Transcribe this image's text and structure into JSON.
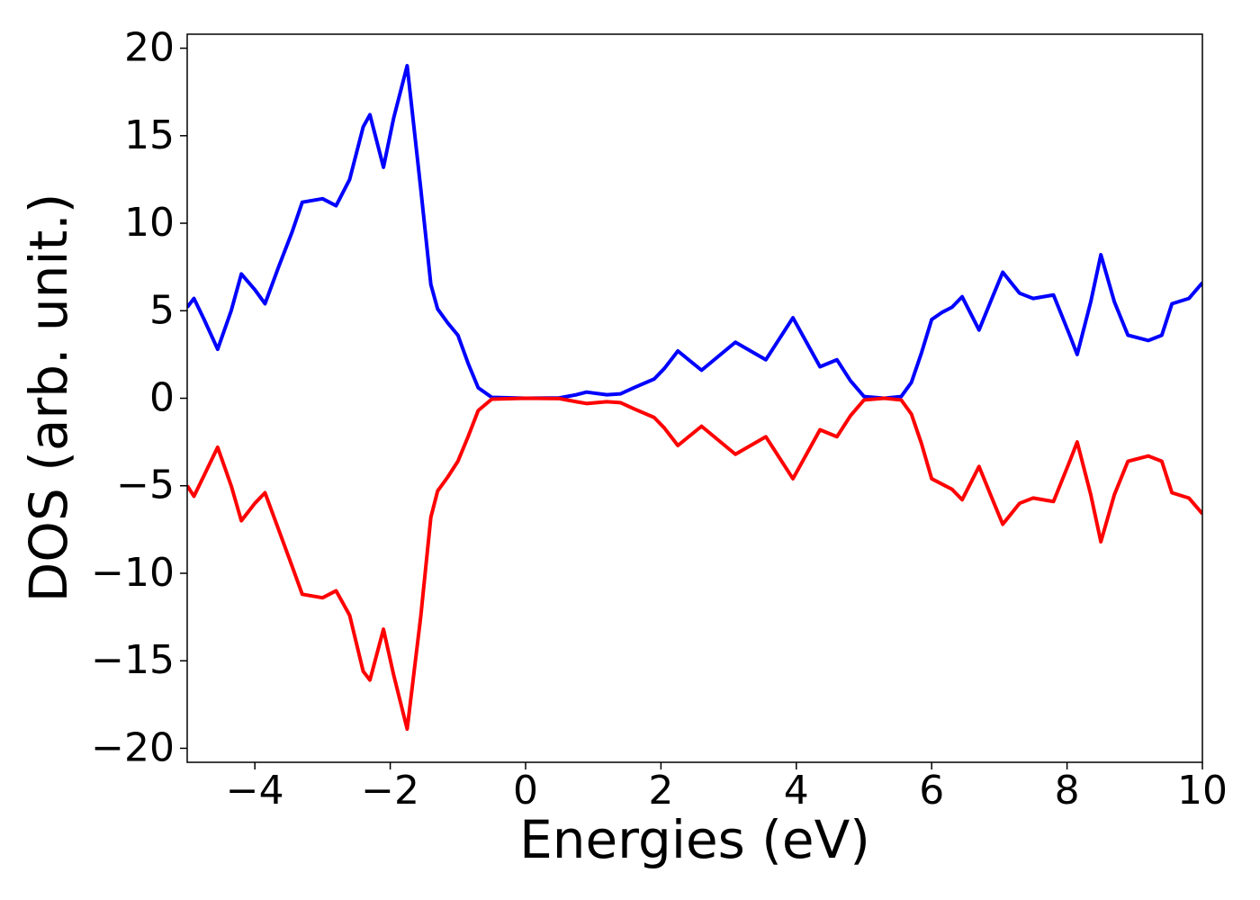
{
  "chart_data": {
    "type": "line",
    "x_label": "Energies (eV)",
    "y_label": "DOS (arb. unit.)",
    "x": [
      -5,
      -4.9,
      -4.75,
      -4.55,
      -4.35,
      -4.2,
      -4.0,
      -3.85,
      -3.65,
      -3.45,
      -3.3,
      -3.0,
      -2.8,
      -2.6,
      -2.4,
      -2.3,
      -2.1,
      -1.95,
      -1.75,
      -1.55,
      -1.4,
      -1.3,
      -1.15,
      -1.0,
      -0.85,
      -0.7,
      -0.5,
      0,
      0.5,
      0.75,
      0.9,
      1.2,
      1.4,
      1.6,
      1.9,
      2.05,
      2.25,
      2.6,
      3.1,
      3.55,
      3.95,
      4.35,
      4.6,
      4.8,
      5.0,
      5.3,
      5.55,
      5.7,
      5.85,
      6.0,
      6.15,
      6.3,
      6.45,
      6.7,
      6.9,
      7.05,
      7.3,
      7.5,
      7.8,
      8.05,
      8.15,
      8.35,
      8.5,
      8.7,
      8.9,
      9.2,
      9.4,
      9.55,
      9.8,
      10
    ],
    "series": [
      {
        "color": "#0000ff",
        "values": [
          5.2,
          5.7,
          4.5,
          2.8,
          5.0,
          7.1,
          6.2,
          5.4,
          7.5,
          9.5,
          11.2,
          11.4,
          11.0,
          12.5,
          15.5,
          16.2,
          13.2,
          16,
          19.0,
          12,
          6.5,
          5.1,
          4.3,
          3.6,
          2.0,
          0.6,
          0.05,
          0,
          0.02,
          0.2,
          0.35,
          0.2,
          0.25,
          0.6,
          1.1,
          1.7,
          2.7,
          1.6,
          3.2,
          2.2,
          4.6,
          1.8,
          2.2,
          1.0,
          0.1,
          0,
          0.1,
          0.9,
          2.6,
          4.5,
          4.9,
          5.2,
          5.8,
          3.9,
          5.8,
          7.2,
          6.0,
          5.7,
          5.9,
          3.5,
          2.5,
          5.5,
          8.2,
          5.5,
          3.6,
          3.3,
          3.6,
          5.4,
          5.7,
          6.6
        ]
      },
      {
        "color": "#ff0000",
        "values": [
          -5.0,
          -5.6,
          -4.4,
          -2.8,
          -5.0,
          -7.0,
          -6.0,
          -5.4,
          -7.5,
          -9.6,
          -11.2,
          -11.4,
          -11.0,
          -12.4,
          -15.6,
          -16.1,
          -13.2,
          -15.8,
          -18.9,
          -12.5,
          -6.8,
          -5.3,
          -4.5,
          -3.6,
          -2.2,
          -0.7,
          -0.05,
          0,
          -0.02,
          -0.2,
          -0.3,
          -0.2,
          -0.25,
          -0.6,
          -1.1,
          -1.7,
          -2.7,
          -1.6,
          -3.2,
          -2.2,
          -4.6,
          -1.8,
          -2.2,
          -1.0,
          -0.1,
          0,
          -0.1,
          -0.9,
          -2.6,
          -4.6,
          -4.9,
          -5.2,
          -5.8,
          -3.9,
          -5.8,
          -7.2,
          -6.0,
          -5.7,
          -5.9,
          -3.5,
          -2.5,
          -5.5,
          -8.2,
          -5.5,
          -3.6,
          -3.3,
          -3.6,
          -5.4,
          -5.7,
          -6.6
        ]
      }
    ],
    "xlim": [
      -5,
      10
    ],
    "ylim": [
      -20.8,
      20.8
    ],
    "xticks": [
      {
        "value": -4,
        "label": "−4"
      },
      {
        "value": -2,
        "label": "−2"
      },
      0,
      2,
      4,
      6,
      8,
      10
    ],
    "yticks": [
      {
        "value": -20,
        "label": "−20"
      },
      {
        "value": -15,
        "label": "−15"
      },
      {
        "value": -10,
        "label": "−10"
      },
      {
        "value": -5,
        "label": "−5"
      },
      0,
      5,
      10,
      15,
      20
    ]
  }
}
